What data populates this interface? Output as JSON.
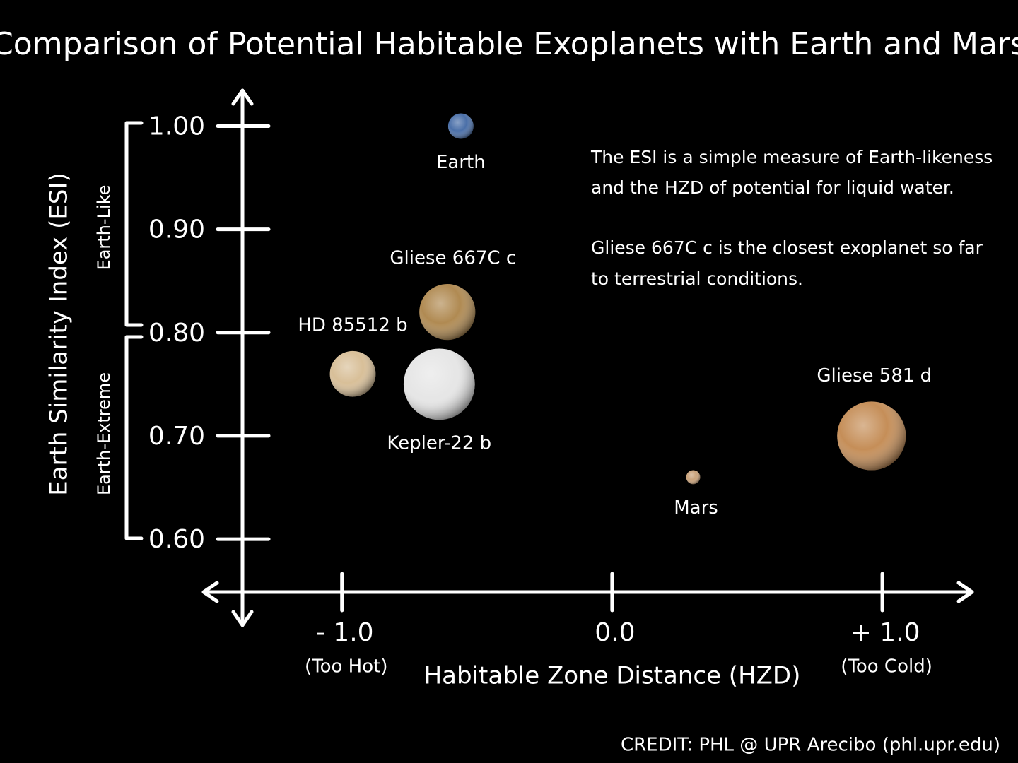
{
  "chart_data": {
    "type": "bubble",
    "title": "Comparison of Potential Habitable Exoplanets with Earth and Mars",
    "x_label": "Habitable Zone Distance (HZD)",
    "y_label": "Earth Similarity Index (ESI)",
    "xlim": [
      -1.52,
      1.34
    ],
    "ylim": [
      0.52,
      1.04
    ],
    "xticks": [
      {
        "value": -1,
        "label": "- 1.0"
      },
      {
        "value": 0,
        "label": "0.0"
      },
      {
        "value": 1,
        "label": "+ 1.0"
      }
    ],
    "yticks": [
      {
        "value": 0.6,
        "label": "0.60"
      },
      {
        "value": 0.7,
        "label": "0.70"
      },
      {
        "value": 0.8,
        "label": "0.80"
      },
      {
        "value": 0.9,
        "label": "0.90"
      },
      {
        "value": 1,
        "label": "1.00"
      }
    ],
    "labels": [
      "Earth",
      "Gliese 667C c",
      "HD 85512 b",
      "Kepler-22 b",
      "Gliese 581 d",
      "Mars"
    ],
    "x": [
      -0.56,
      -0.61,
      -0.96,
      -0.64,
      0.96,
      0.3
    ],
    "values": [
      1.0,
      0.82,
      0.76,
      0.75,
      0.7,
      0.66
    ],
    "sizes": [
      1.0,
      2.2,
      1.8,
      2.8,
      2.7,
      0.55
    ],
    "colors": [
      "#4a6fa8",
      "#b08a52",
      "#d8bf98",
      "#e6e6e6",
      "#c58e58",
      "#c9a27a"
    ],
    "annotations": {
      "too_hot": "(Too Hot)",
      "too_cold": "(Too Cold)",
      "earth_like": "Earth-Like",
      "earth_extreme": "Earth-Extreme",
      "notes": [
        "The ESI is a simple measure of Earth-likeness",
        "and the HZD of potential for liquid water.",
        "Gliese 667C c is the closest exoplanet so far",
        "to terrestrial conditions."
      ],
      "credit": "CREDIT: PHL @ UPR Arecibo (phl.upr.edu)"
    }
  }
}
